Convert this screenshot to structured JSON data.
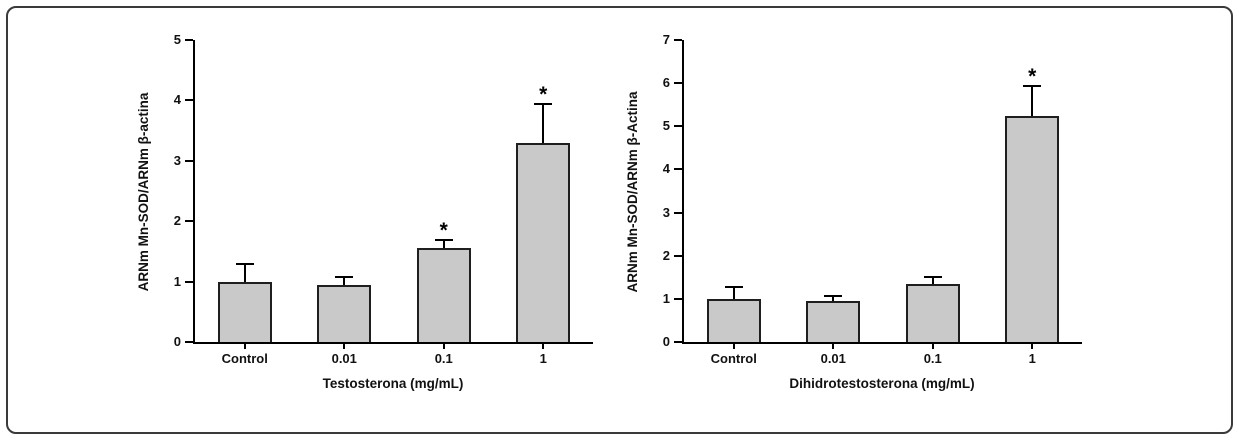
{
  "figure": {
    "frame_border_color": "#3a3a3a",
    "background_color": "#ffffff"
  },
  "chart_data": [
    {
      "type": "bar",
      "title": "",
      "categories": [
        "Control",
        "0.01",
        "0.1",
        "1"
      ],
      "values": [
        1.0,
        0.95,
        1.55,
        3.3
      ],
      "errors": [
        0.3,
        0.15,
        0.15,
        0.65
      ],
      "significance": [
        false,
        false,
        true,
        true
      ],
      "significance_label": "*",
      "xlabel": "Testosterona (mg/mL)",
      "ylabel": "ARNm Mn-SOD/ARNm β-actina",
      "ylim": [
        0,
        5
      ],
      "yticks": [
        0,
        1,
        2,
        3,
        4,
        5
      ],
      "grid": false,
      "legend": "none",
      "bar_color": "#c9c9c9",
      "bar_border": "#1f1f1f"
    },
    {
      "type": "bar",
      "title": "",
      "categories": [
        "Control",
        "0.01",
        "0.1",
        "1"
      ],
      "values": [
        1.0,
        0.95,
        1.35,
        5.25
      ],
      "errors": [
        0.3,
        0.15,
        0.18,
        0.7
      ],
      "significance": [
        false,
        false,
        false,
        true
      ],
      "significance_label": "*",
      "xlabel": "Dihidrotestosterona (mg/mL)",
      "ylabel": "ARNm Mn-SOD/ARNm β-Actina",
      "ylim": [
        0,
        7
      ],
      "yticks": [
        0,
        1,
        2,
        3,
        4,
        5,
        6,
        7
      ],
      "grid": false,
      "legend": "none",
      "bar_color": "#c9c9c9",
      "bar_border": "#1f1f1f"
    }
  ]
}
